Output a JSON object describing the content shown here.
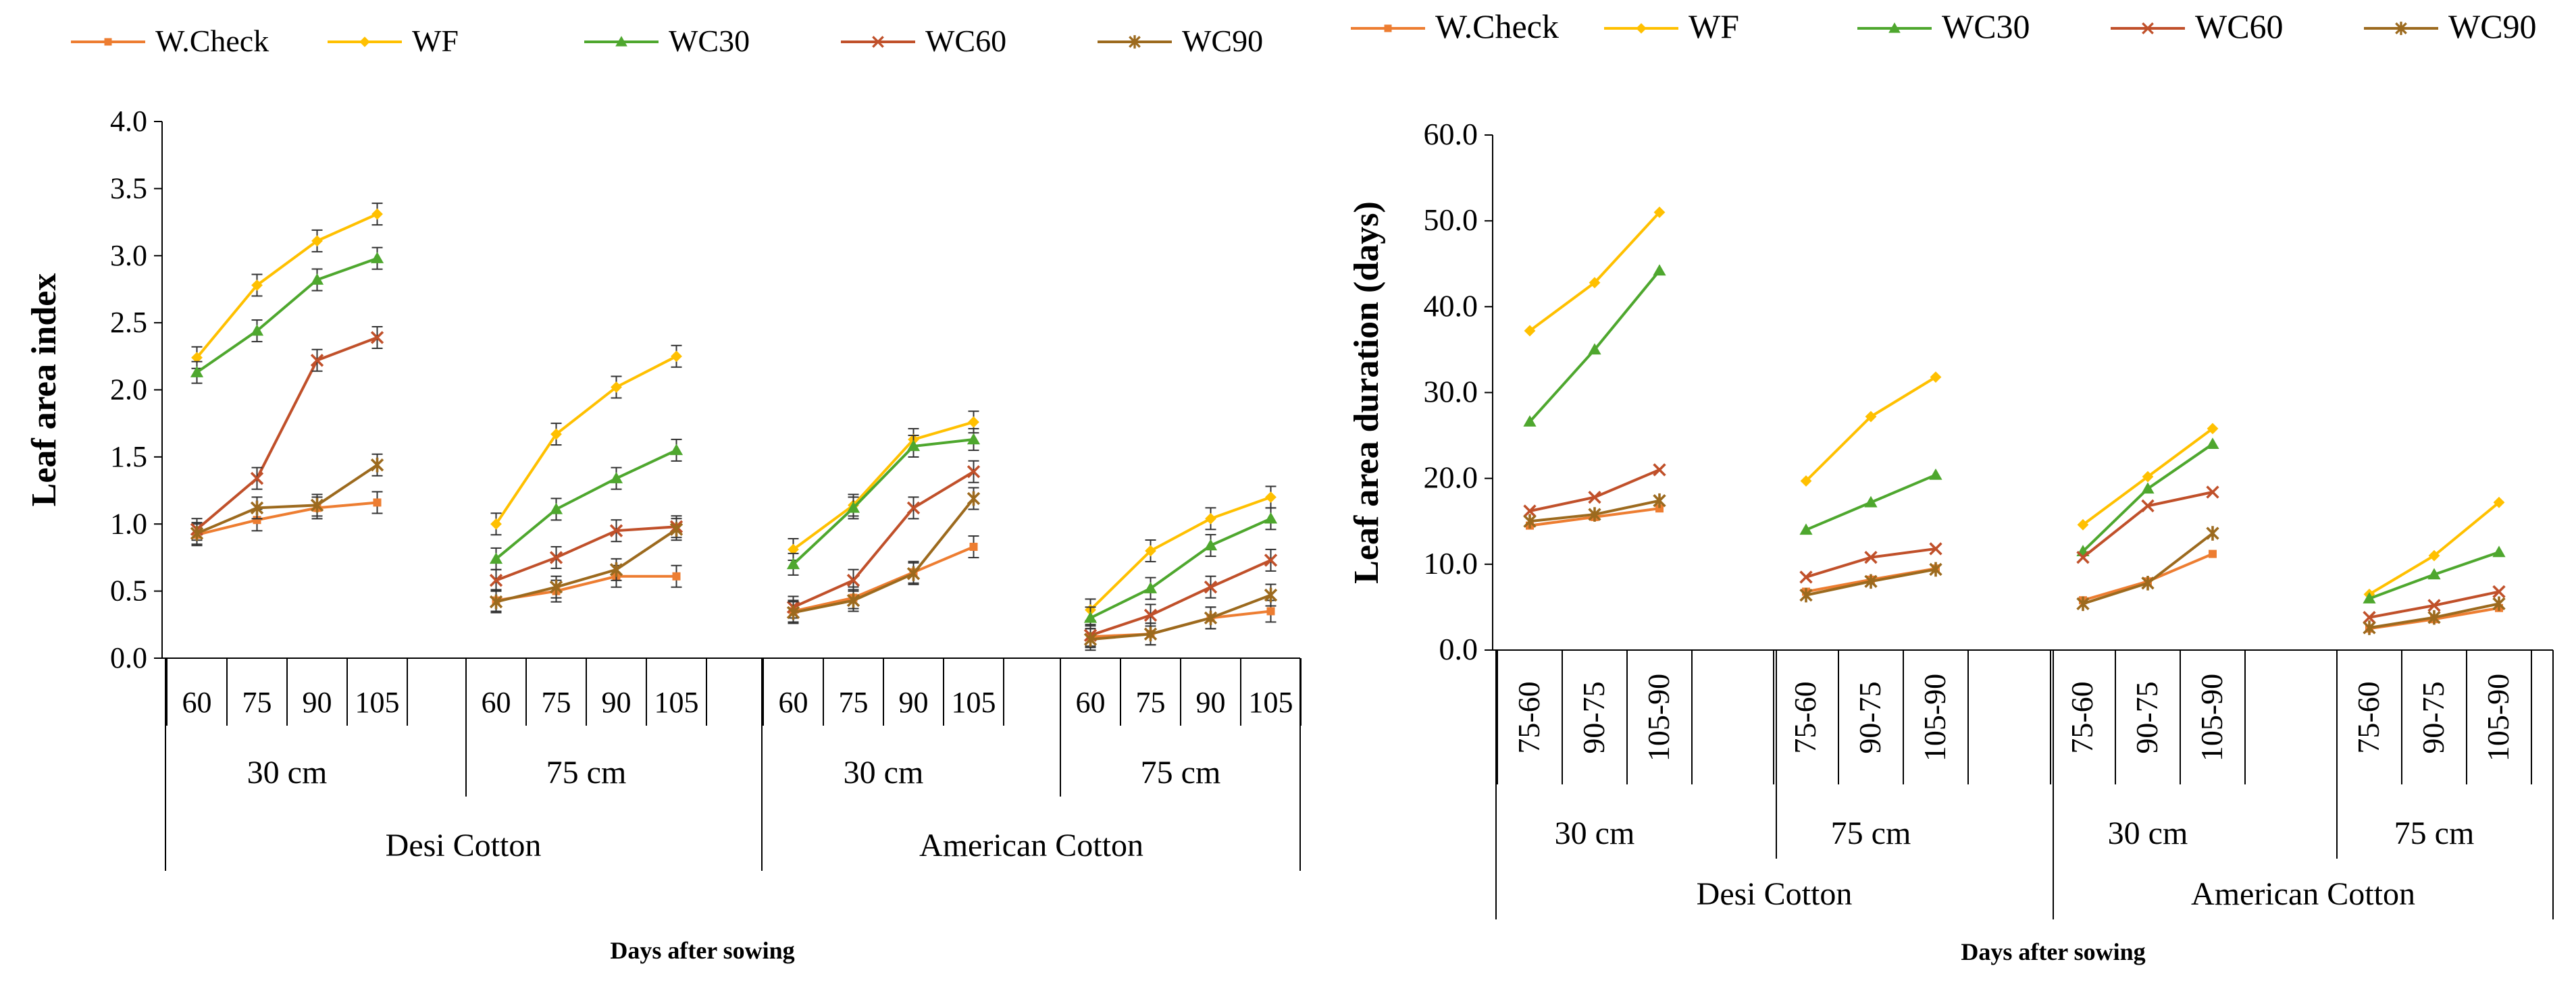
{
  "legend_labels": [
    "W.Check",
    "WF",
    "WC30",
    "WC60",
    "WC90"
  ],
  "series_colors": {
    "W.Check": "#ED7D31",
    "WF": "#FFC000",
    "WC30": "#4EA72E",
    "WC60": "#C0502A",
    "WC90": "#9C6A1E"
  },
  "chart_data": [
    {
      "type": "line",
      "title": "",
      "ylabel": "Leaf area index",
      "xlabel": "Days after sowing",
      "ylim": [
        0,
        4
      ],
      "yticks": [
        "0.0",
        "0.5",
        "1.0",
        "1.5",
        "2.0",
        "2.5",
        "3.0",
        "3.5",
        "4.0"
      ],
      "x_tick_labels": [
        "60",
        "75",
        "90",
        "105"
      ],
      "spacing_labels": [
        "30 cm",
        "75 cm",
        "30 cm",
        "75 cm"
      ],
      "group_labels": [
        "Desi Cotton",
        "American Cotton"
      ],
      "series": [
        {
          "name": "W.Check",
          "segments": [
            [
              0.92,
              1.03,
              1.12,
              1.16
            ],
            [
              0.43,
              0.5,
              0.61,
              0.61
            ],
            [
              0.35,
              0.45,
              0.64,
              0.83
            ],
            [
              0.16,
              0.18,
              0.3,
              0.35
            ]
          ]
        },
        {
          "name": "WF",
          "segments": [
            [
              2.24,
              2.78,
              3.11,
              3.31
            ],
            [
              1.0,
              1.67,
              2.02,
              2.25
            ],
            [
              0.81,
              1.14,
              1.63,
              1.76
            ],
            [
              0.36,
              0.8,
              1.04,
              1.2
            ]
          ]
        },
        {
          "name": "WC30",
          "segments": [
            [
              2.13,
              2.44,
              2.82,
              2.98
            ],
            [
              0.74,
              1.11,
              1.34,
              1.55
            ],
            [
              0.7,
              1.12,
              1.58,
              1.63
            ],
            [
              0.3,
              0.52,
              0.84,
              1.04
            ]
          ]
        },
        {
          "name": "WC60",
          "segments": [
            [
              0.96,
              1.34,
              2.22,
              2.39
            ],
            [
              0.58,
              0.75,
              0.95,
              0.98
            ],
            [
              0.38,
              0.58,
              1.12,
              1.39
            ],
            [
              0.17,
              0.32,
              0.53,
              0.73
            ]
          ]
        },
        {
          "name": "WC90",
          "segments": [
            [
              0.93,
              1.12,
              1.14,
              1.44
            ],
            [
              0.42,
              0.53,
              0.66,
              0.96
            ],
            [
              0.34,
              0.43,
              0.63,
              1.19
            ],
            [
              0.14,
              0.18,
              0.3,
              0.47
            ]
          ]
        }
      ]
    },
    {
      "type": "line",
      "title": "",
      "ylabel": "Leaf area duration  (days)",
      "xlabel": "Days after sowing",
      "ylim": [
        0,
        60
      ],
      "yticks": [
        "0.0",
        "10.0",
        "20.0",
        "30.0",
        "40.0",
        "50.0",
        "60.0"
      ],
      "x_tick_labels": [
        "75-60",
        "90-75",
        "105-90"
      ],
      "spacing_labels": [
        "30 cm",
        "75 cm",
        "30 cm",
        "75 cm"
      ],
      "group_labels": [
        "Desi Cotton",
        "American Cotton"
      ],
      "series": [
        {
          "name": "W.Check",
          "segments": [
            [
              14.5,
              15.5,
              16.5
            ],
            [
              6.8,
              8.2,
              9.5
            ],
            [
              5.8,
              8.0,
              11.2
            ],
            [
              2.5,
              3.6,
              4.9
            ]
          ]
        },
        {
          "name": "WF",
          "segments": [
            [
              37.2,
              42.8,
              51.0
            ],
            [
              19.7,
              27.2,
              31.8
            ],
            [
              14.6,
              20.2,
              25.8
            ],
            [
              6.5,
              11.0,
              17.2
            ]
          ]
        },
        {
          "name": "WC30",
          "segments": [
            [
              26.6,
              35.0,
              44.2
            ],
            [
              14.0,
              17.2,
              20.4
            ],
            [
              11.5,
              18.8,
              24.0
            ],
            [
              6.0,
              8.8,
              11.4
            ]
          ]
        },
        {
          "name": "WC60",
          "segments": [
            [
              16.2,
              17.8,
              21.0
            ],
            [
              8.5,
              10.8,
              11.8
            ],
            [
              10.8,
              16.8,
              18.4
            ],
            [
              3.8,
              5.2,
              6.8
            ]
          ]
        },
        {
          "name": "WC90",
          "segments": [
            [
              15.0,
              15.8,
              17.4
            ],
            [
              6.4,
              8.0,
              9.4
            ],
            [
              5.4,
              7.8,
              13.6
            ],
            [
              2.6,
              3.8,
              5.4
            ]
          ]
        }
      ]
    }
  ]
}
